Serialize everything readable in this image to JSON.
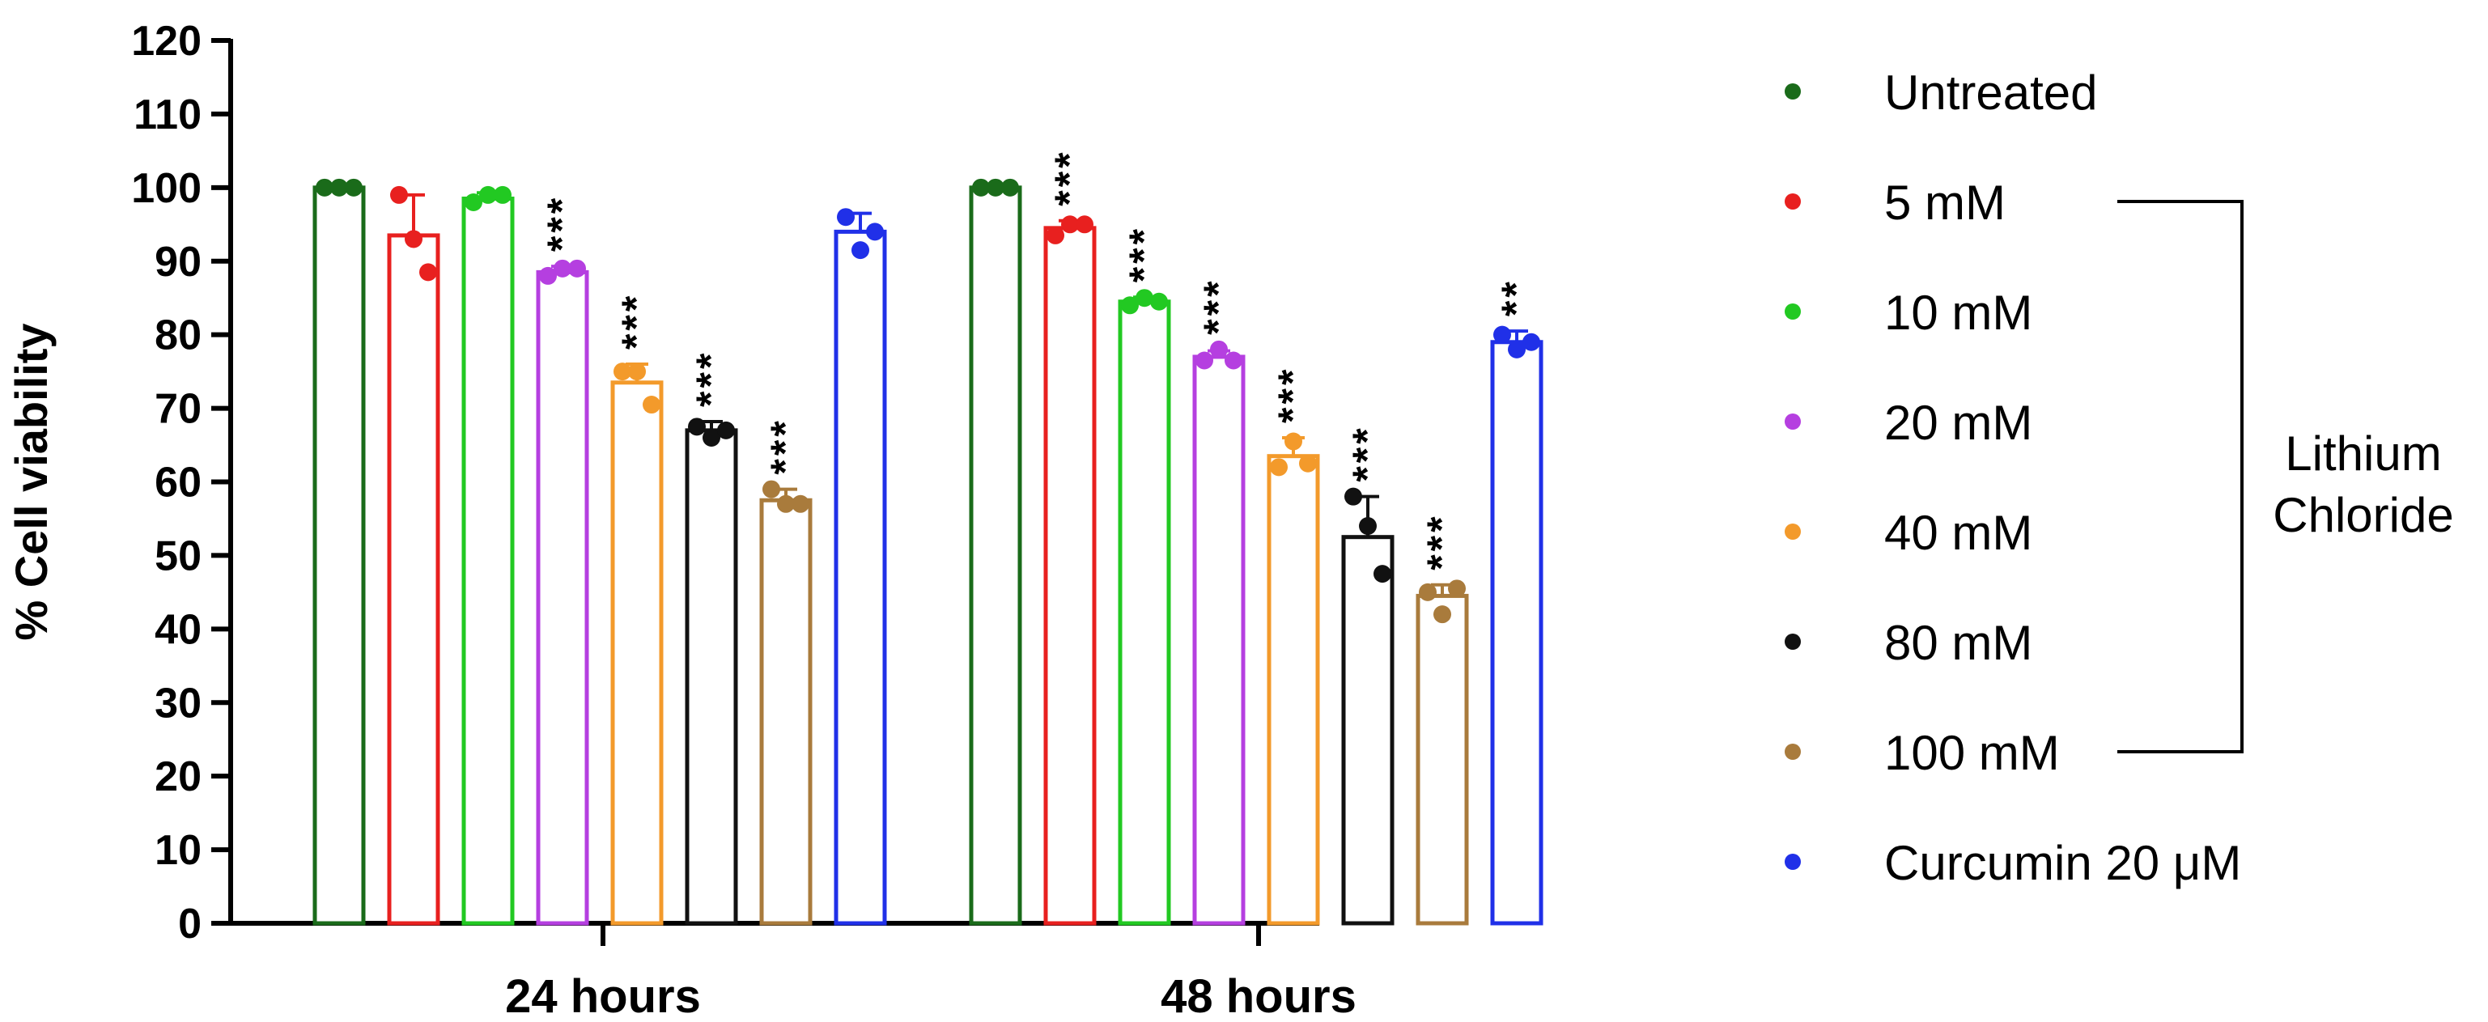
{
  "chart_data": {
    "type": "bar",
    "title": "",
    "xlabel": "",
    "ylabel": "% Cell viability",
    "ylim": [
      0,
      120
    ],
    "yticks": [
      0,
      10,
      20,
      30,
      40,
      50,
      60,
      70,
      80,
      90,
      100,
      110,
      120
    ],
    "grid": false,
    "legend_position": "right",
    "categories": [
      "24 hours",
      "48 hours"
    ],
    "series": [
      {
        "name": "Untreated",
        "color": "#1a6b1a",
        "values": [
          100,
          100
        ],
        "errors": [
          0,
          0
        ],
        "points": [
          [
            100,
            100,
            100
          ],
          [
            100,
            100,
            100
          ]
        ],
        "significance": [
          "",
          ""
        ]
      },
      {
        "name": "5 mM",
        "color": "#e8201f",
        "values": [
          93.5,
          94.5
        ],
        "errors": [
          5.5,
          1
        ],
        "points": [
          [
            99,
            93,
            88.5
          ],
          [
            93.5,
            95,
            95
          ]
        ],
        "significance": [
          "",
          "***"
        ]
      },
      {
        "name": "10 mM",
        "color": "#22c922",
        "values": [
          98.5,
          84.5
        ],
        "errors": [
          0.8,
          0.6
        ],
        "points": [
          [
            98,
            99,
            99
          ],
          [
            84,
            85,
            84.5
          ]
        ],
        "significance": [
          "",
          "***"
        ]
      },
      {
        "name": "20 mM",
        "color": "#b53fe0",
        "values": [
          88.5,
          77
        ],
        "errors": [
          0.8,
          0.8
        ],
        "points": [
          [
            88,
            89,
            89
          ],
          [
            76.5,
            78,
            76.5
          ]
        ],
        "significance": [
          "***",
          "***"
        ]
      },
      {
        "name": "40 mM",
        "color": "#f39a2b",
        "values": [
          73.5,
          63.5
        ],
        "errors": [
          2.5,
          2.5
        ],
        "points": [
          [
            75,
            75,
            70.5
          ],
          [
            62,
            65.5,
            62.5
          ]
        ],
        "significance": [
          "***",
          "***"
        ]
      },
      {
        "name": "80 mM",
        "color": "#111111",
        "values": [
          67,
          52.5
        ],
        "errors": [
          1.2,
          5.5
        ],
        "points": [
          [
            67.5,
            66,
            67
          ],
          [
            58,
            54,
            47.5
          ]
        ],
        "significance": [
          "***",
          "***"
        ]
      },
      {
        "name": "100 mM",
        "color": "#a97b3c",
        "values": [
          57.5,
          44.5
        ],
        "errors": [
          1.5,
          1.5
        ],
        "points": [
          [
            59,
            57,
            57
          ],
          [
            45,
            42,
            45.5
          ]
        ],
        "significance": [
          "***",
          "***"
        ]
      },
      {
        "name": "Curcumin 20 μM",
        "color": "#2030e8",
        "values": [
          94,
          79
        ],
        "errors": [
          2.5,
          1.5
        ],
        "points": [
          [
            96,
            91.5,
            94
          ],
          [
            80,
            78,
            79
          ]
        ],
        "significance": [
          "",
          "**"
        ]
      }
    ],
    "bracket_label": [
      "Lithium",
      "Chloride"
    ]
  }
}
